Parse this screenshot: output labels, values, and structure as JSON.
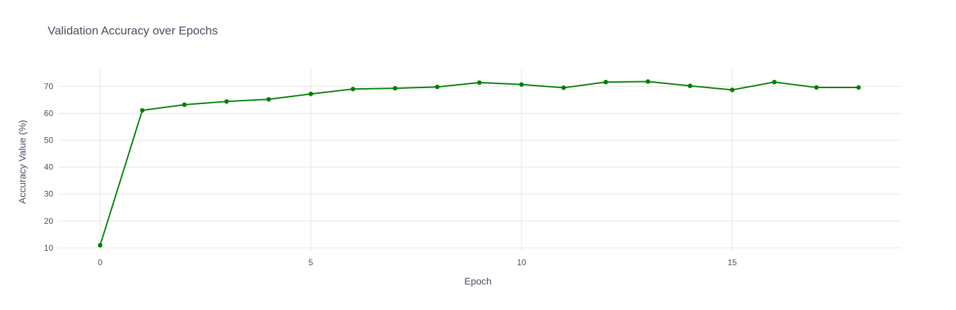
{
  "chart_data": {
    "type": "line",
    "title": "Validation Accuracy over Epochs",
    "xlabel": "Epoch",
    "ylabel": "Accuracy Value (%)",
    "xlim": [
      -1,
      19
    ],
    "ylim": [
      8.7,
      76.5
    ],
    "xticks": [
      0,
      5,
      10,
      15
    ],
    "yticks": [
      10,
      20,
      30,
      40,
      50,
      60,
      70
    ],
    "grid": true,
    "line_color": "#008000",
    "series": [
      {
        "x": [
          0,
          1,
          2,
          3,
          4,
          5,
          6,
          7,
          8,
          9,
          10,
          11,
          12,
          13,
          14,
          15,
          16,
          17,
          18
        ],
        "values": [
          11.0,
          61.1,
          63.2,
          64.4,
          65.2,
          67.2,
          69.0,
          69.3,
          69.8,
          71.4,
          70.7,
          69.5,
          71.6,
          71.8,
          70.2,
          68.7,
          71.6,
          69.6,
          69.6
        ]
      }
    ]
  }
}
